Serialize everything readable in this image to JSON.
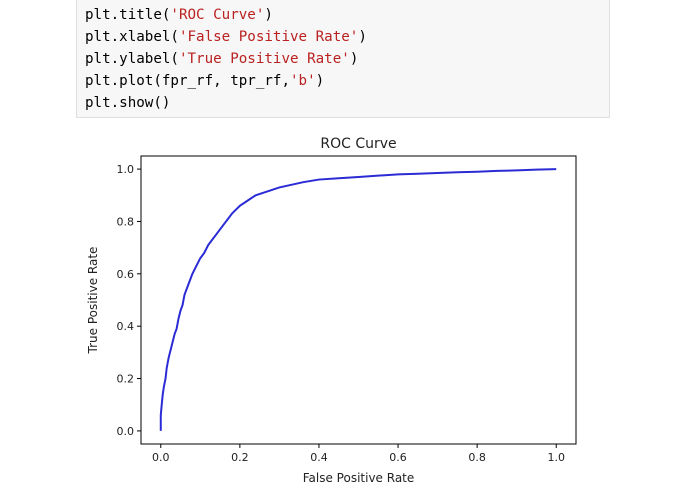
{
  "code": {
    "lines": [
      {
        "fn": "plt.title",
        "open": "(",
        "arg": "",
        "str": "'ROC Curve'",
        "close": ")"
      },
      {
        "fn": "plt.xlabel",
        "open": "(",
        "arg": "",
        "str": "'False Positive Rate'",
        "close": ")"
      },
      {
        "fn": "plt.ylabel",
        "open": "(",
        "arg": "",
        "str": "'True Positive Rate'",
        "close": ")"
      },
      {
        "fn": "plt.plot",
        "open": "(",
        "arg": "fpr_rf, tpr_rf,",
        "str": "'b'",
        "close": ")"
      },
      {
        "fn": "plt.show",
        "open": "(",
        "arg": "",
        "str": "",
        "close": ")"
      }
    ]
  },
  "colors": {
    "line": "#2b2bd6",
    "axis": "#000000",
    "text": "#222222"
  },
  "chart_data": {
    "type": "line",
    "title": "ROC Curve",
    "xlabel": "False Positive Rate",
    "ylabel": "True Positive Rate",
    "xlim": [
      -0.05,
      1.05
    ],
    "ylim": [
      -0.05,
      1.05
    ],
    "xticks": [
      0.0,
      0.2,
      0.4,
      0.6,
      0.8,
      1.0
    ],
    "xtick_labels": [
      "0.0",
      "0.2",
      "0.4",
      "0.6",
      "0.8",
      "1.0"
    ],
    "yticks": [
      0.0,
      0.2,
      0.4,
      0.6,
      0.8,
      1.0
    ],
    "ytick_labels": [
      "0.0",
      "0.2",
      "0.4",
      "0.6",
      "0.8",
      "1.0"
    ],
    "grid": false,
    "series": [
      {
        "x": [
          0.0,
          0.0,
          0.003,
          0.005,
          0.008,
          0.012,
          0.015,
          0.02,
          0.025,
          0.03,
          0.035,
          0.04,
          0.045,
          0.05,
          0.055,
          0.06,
          0.07,
          0.08,
          0.09,
          0.1,
          0.11,
          0.12,
          0.13,
          0.14,
          0.15,
          0.16,
          0.17,
          0.18,
          0.2,
          0.22,
          0.24,
          0.26,
          0.28,
          0.3,
          0.33,
          0.36,
          0.4,
          0.45,
          0.5,
          0.55,
          0.6,
          0.65,
          0.7,
          0.75,
          0.8,
          0.85,
          0.9,
          0.95,
          1.0
        ],
        "y": [
          0.0,
          0.06,
          0.11,
          0.14,
          0.17,
          0.2,
          0.24,
          0.28,
          0.31,
          0.34,
          0.37,
          0.39,
          0.43,
          0.46,
          0.48,
          0.52,
          0.56,
          0.6,
          0.63,
          0.66,
          0.68,
          0.71,
          0.73,
          0.75,
          0.77,
          0.79,
          0.81,
          0.83,
          0.86,
          0.88,
          0.9,
          0.91,
          0.92,
          0.93,
          0.94,
          0.95,
          0.96,
          0.965,
          0.97,
          0.975,
          0.98,
          0.982,
          0.985,
          0.988,
          0.99,
          0.993,
          0.995,
          0.998,
          1.0
        ]
      }
    ]
  }
}
